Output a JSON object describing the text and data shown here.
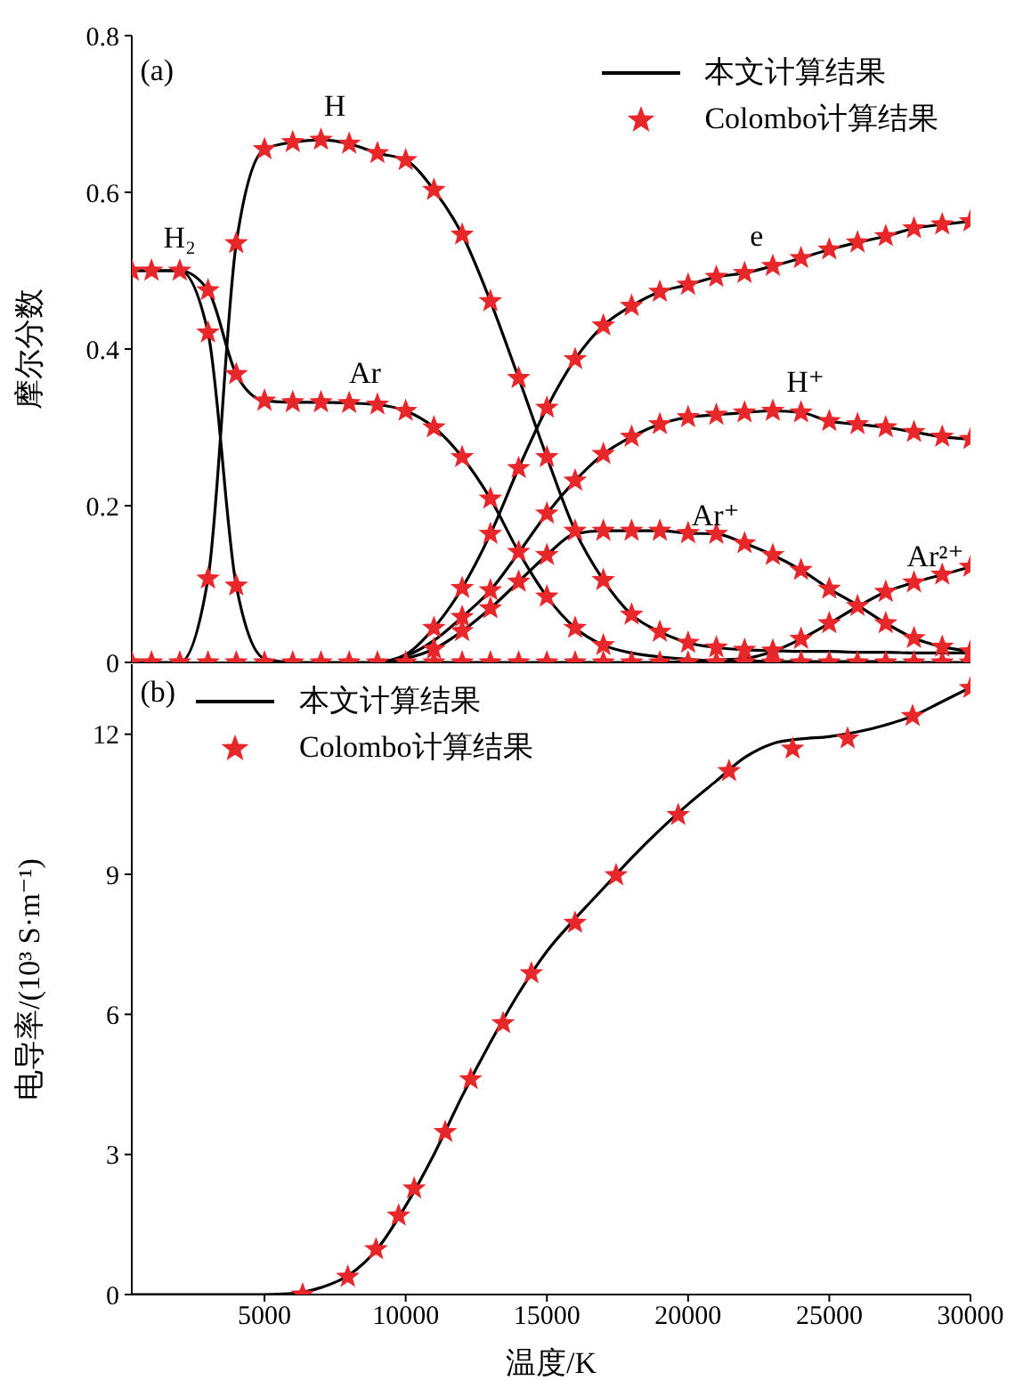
{
  "chart_data": [
    {
      "type": "line",
      "ylabel": "摩尔分数",
      "xlim": [
        300,
        30000
      ],
      "xticks": [
        5000,
        10000,
        15000,
        20000,
        25000,
        30000
      ],
      "ylim": [
        0,
        0.8
      ],
      "yticks": [
        0,
        0.2,
        0.4,
        0.6,
        0.8
      ],
      "tick_labels": "y",
      "legend": "top right",
      "x": [
        300,
        1000,
        2000,
        3000,
        4000,
        5000,
        6000,
        7000,
        8000,
        9000,
        10000,
        11000,
        12000,
        13000,
        14000,
        15000,
        16000,
        17000,
        18000,
        19000,
        20000,
        21000,
        22000,
        23000,
        24000,
        25000,
        26000,
        27000,
        28000,
        29000,
        30000
      ],
      "annotations": [
        "(a)",
        "H₂",
        "H",
        "Ar",
        "e",
        "H⁺",
        "Ar⁺",
        "Ar²⁺"
      ],
      "series": [
        {
          "name": "本文计算结果",
          "color": "#000000",
          "marker": "none",
          "values": [
            0.5,
            0.5,
            0.5,
            0.421,
            0.098,
            0.005,
            0,
            0,
            0,
            0,
            0,
            0,
            0,
            0,
            0,
            0,
            0,
            0,
            0,
            0,
            0,
            0,
            0,
            0,
            0,
            0,
            0,
            0,
            0,
            0,
            0
          ]
        },
        {
          "color": "#000000",
          "marker": "none",
          "x": [
            300,
            1000,
            2000,
            3000,
            4000,
            5000,
            6000,
            7000,
            8000,
            9000,
            10000,
            11000,
            12000,
            13000,
            14000,
            15000,
            16000,
            17000,
            18000,
            19000,
            20000,
            21000,
            22000,
            23000,
            24000,
            25000,
            26000,
            27000
          ],
          "values": [
            0.5,
            0.5,
            0.5,
            0.475,
            0.368,
            0.334,
            0.332,
            0.332,
            0.331,
            0.329,
            0.321,
            0.3,
            0.262,
            0.209,
            0.141,
            0.084,
            0.044,
            0.022,
            0.012,
            0.007,
            0.004,
            0.002,
            0.002,
            0.001,
            0.001,
            0.001,
            0.001,
            0.001
          ]
        },
        {
          "color": "#000000",
          "marker": "none",
          "values": [
            0,
            0,
            0,
            0.107,
            0.535,
            0.655,
            0.664,
            0.667,
            0.662,
            0.65,
            0.641,
            0.603,
            0.546,
            0.461,
            0.363,
            0.262,
            0.168,
            0.105,
            0.061,
            0.039,
            0.025,
            0.019,
            0.016,
            0.015,
            0.014,
            0.014,
            0.013,
            0.013,
            0.012,
            0.012,
            0.012
          ]
        },
        {
          "color": "#000000",
          "marker": "none",
          "x": [
            9000,
            10000,
            11000,
            12000,
            13000,
            14000,
            15000,
            16000,
            17000,
            18000,
            19000,
            20000,
            21000,
            22000,
            23000,
            24000,
            25000,
            26000,
            27000,
            28000,
            29000,
            30000
          ],
          "values": [
            0,
            0.01,
            0.044,
            0.095,
            0.164,
            0.248,
            0.325,
            0.387,
            0.43,
            0.455,
            0.473,
            0.482,
            0.492,
            0.497,
            0.506,
            0.516,
            0.527,
            0.536,
            0.544,
            0.554,
            0.559,
            0.563
          ]
        },
        {
          "color": "#000000",
          "marker": "none",
          "x": [
            9000,
            10000,
            11000,
            12000,
            13000,
            14000,
            15000,
            16000,
            17000,
            18000,
            19000,
            20000,
            21000,
            22000,
            23000,
            24000,
            25000,
            26000,
            27000,
            28000,
            29000,
            30000
          ],
          "values": [
            0,
            0.008,
            0.028,
            0.058,
            0.092,
            0.14,
            0.19,
            0.232,
            0.266,
            0.288,
            0.304,
            0.313,
            0.316,
            0.319,
            0.321,
            0.319,
            0.308,
            0.304,
            0.3,
            0.294,
            0.288,
            0.285
          ]
        },
        {
          "color": "#000000",
          "marker": "none",
          "x": [
            9000,
            10000,
            11000,
            12000,
            13000,
            14000,
            15000,
            16000,
            17000,
            18000,
            19000,
            20000,
            21000,
            22000,
            23000,
            24000,
            25000,
            26000,
            27000,
            28000,
            29000,
            30000
          ],
          "values": [
            0,
            0.005,
            0.017,
            0.04,
            0.069,
            0.103,
            0.137,
            0.164,
            0.168,
            0.168,
            0.168,
            0.165,
            0.164,
            0.152,
            0.137,
            0.118,
            0.094,
            0.073,
            0.05,
            0.031,
            0.02,
            0.014
          ]
        },
        {
          "color": "#000000",
          "marker": "none",
          "x": [
            19000,
            20000,
            21000,
            22000,
            23000,
            24000,
            25000,
            26000,
            27000,
            28000,
            29000,
            30000
          ],
          "values": [
            0,
            0.001,
            0.003,
            0.005,
            0.014,
            0.03,
            0.05,
            0.071,
            0.09,
            0.102,
            0.112,
            0.122
          ]
        },
        {
          "type": "scatter",
          "name": "Colombo计算结果",
          "color": "#e8272b",
          "marker": "star",
          "x": [
            300,
            300,
            1000,
            1000,
            2000,
            2000,
            3000,
            3000,
            3000,
            3000,
            4000,
            4000,
            4000,
            4000,
            5000,
            5000,
            5000,
            6000,
            6000,
            6000,
            7000,
            7000,
            7000,
            8000,
            8000,
            8000,
            9000,
            9000,
            9000,
            10000,
            10000,
            10000,
            11000,
            11000,
            11000,
            11000,
            11000,
            12000,
            12000,
            12000,
            12000,
            12000,
            12000,
            13000,
            13000,
            13000,
            13000,
            13000,
            13000,
            14000,
            14000,
            14000,
            14000,
            14000,
            15000,
            15000,
            15000,
            15000,
            15000,
            15000,
            16000,
            16000,
            16000,
            16000,
            16000,
            17000,
            17000,
            17000,
            17000,
            17000,
            17000,
            18000,
            18000,
            18000,
            18000,
            18000,
            19000,
            19000,
            19000,
            19000,
            19000,
            20000,
            20000,
            20000,
            20000,
            20000,
            21000,
            21000,
            21000,
            21000,
            21000,
            22000,
            22000,
            22000,
            22000,
            22000,
            23000,
            23000,
            23000,
            23000,
            23000,
            24000,
            24000,
            24000,
            24000,
            24000,
            25000,
            25000,
            25000,
            25000,
            25000,
            26000,
            26000,
            26000,
            26000,
            27000,
            27000,
            27000,
            27000,
            27000,
            28000,
            28000,
            28000,
            28000,
            28000,
            29000,
            29000,
            29000,
            29000,
            29000,
            30000,
            30000,
            30000,
            30000,
            30000
          ],
          "values": [
            0.5,
            0,
            0.5,
            0,
            0.5,
            0,
            0.421,
            0.475,
            0.107,
            0,
            0.098,
            0.368,
            0.535,
            0,
            0.334,
            0.655,
            0,
            0.332,
            0.664,
            0,
            0.332,
            0.667,
            0,
            0.331,
            0.662,
            0,
            0.329,
            0.65,
            0,
            0.321,
            0.641,
            0,
            0.3,
            0.603,
            0.044,
            0.017,
            0,
            0.262,
            0.546,
            0.095,
            0.058,
            0.04,
            0,
            0.209,
            0.461,
            0.164,
            0.092,
            0.069,
            0,
            0.141,
            0.363,
            0.248,
            0.103,
            0,
            0.084,
            0.262,
            0.325,
            0.19,
            0.137,
            0,
            0.044,
            0.168,
            0.387,
            0.232,
            0,
            0.022,
            0.105,
            0.43,
            0.266,
            0.168,
            0,
            0.061,
            0.455,
            0.288,
            0.168,
            0,
            0.039,
            0.473,
            0.304,
            0.168,
            0,
            0.025,
            0.482,
            0.313,
            0.165,
            0,
            0.019,
            0.492,
            0.316,
            0.164,
            0,
            0.016,
            0.497,
            0.319,
            0.152,
            0,
            0.015,
            0.506,
            0.321,
            0.137,
            0,
            0.516,
            0.319,
            0.118,
            0.03,
            0,
            0.527,
            0.308,
            0.094,
            0.05,
            0,
            0.536,
            0.304,
            0.072,
            0,
            0.544,
            0.3,
            0.05,
            0.09,
            0,
            0.554,
            0.294,
            0.031,
            0.102,
            0,
            0.559,
            0.288,
            0.02,
            0.112,
            0,
            0.563,
            0.285,
            0.014,
            0.122,
            0
          ]
        }
      ]
    },
    {
      "type": "line",
      "xlabel": "温度/K",
      "ylabel": "电导率/(10³ S·m⁻¹)",
      "xlim": [
        300,
        30000
      ],
      "xticks": [
        5000,
        10000,
        15000,
        20000,
        25000,
        30000
      ],
      "ylim": [
        0,
        13.5
      ],
      "yticks": [
        0,
        3,
        6,
        9,
        12
      ],
      "legend": "top left",
      "annotations": [
        "(b)"
      ],
      "series": [
        {
          "name": "本文计算结果",
          "color": "#000000",
          "marker": "none",
          "x": [
            300,
            5000,
            6000,
            7000,
            8000,
            9000,
            10000,
            11000,
            12000,
            13000,
            14000,
            15000,
            16000,
            17000,
            18000,
            19000,
            20000,
            21000,
            22000,
            23000,
            24000,
            25000,
            26000,
            27000,
            28000,
            29000,
            30000
          ],
          "values": [
            0,
            0,
            0.02,
            0.15,
            0.42,
            0.98,
            1.9,
            3.0,
            4.25,
            5.4,
            6.45,
            7.35,
            8.05,
            8.7,
            9.35,
            9.95,
            10.5,
            11.0,
            11.5,
            11.8,
            11.9,
            11.95,
            12.05,
            12.2,
            12.4,
            12.7,
            13.0
          ]
        },
        {
          "type": "scatter",
          "name": "Colombo计算结果",
          "color": "#e8272b",
          "marker": "star",
          "x": [
            6350,
            7950,
            8950,
            9750,
            10300,
            11400,
            12300,
            13450,
            14450,
            16000,
            17450,
            19650,
            21450,
            23700,
            25650,
            27950,
            30000
          ],
          "values": [
            0,
            0.38,
            0.97,
            1.69,
            2.27,
            3.48,
            4.61,
            5.81,
            6.88,
            7.96,
            8.98,
            10.27,
            11.21,
            11.69,
            11.91,
            12.39,
            12.99
          ]
        }
      ]
    }
  ]
}
